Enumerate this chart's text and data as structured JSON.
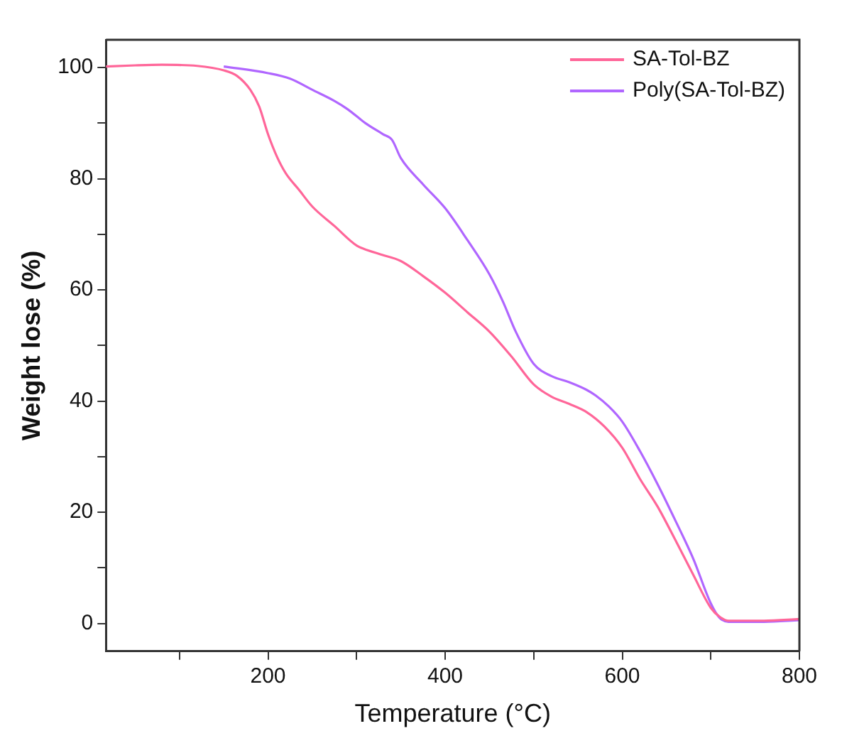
{
  "chart_data": {
    "type": "line",
    "xlabel": "Temperature (°C)",
    "ylabel": "Weight lose (%)",
    "xlim": [
      17,
      800
    ],
    "ylim": [
      -5,
      105
    ],
    "xticks": [
      {
        "value": 100,
        "label": null
      },
      200,
      {
        "value": 300,
        "label": null
      },
      400,
      {
        "value": 500,
        "label": null
      },
      600,
      {
        "value": 700,
        "label": null
      },
      800
    ],
    "yticks": [
      0,
      {
        "value": 10,
        "label": null
      },
      20,
      {
        "value": 30,
        "label": null
      },
      40,
      {
        "value": 50,
        "label": null
      },
      60,
      {
        "value": 70,
        "label": null
      },
      80,
      {
        "value": 90,
        "label": null
      },
      100
    ],
    "grid": false,
    "legend": "top right",
    "marker": "none",
    "line_style": "solid",
    "series": [
      {
        "name": "SA-Tol-BZ",
        "color": "#ff6699",
        "x": [
          17,
          50,
          80,
          120,
          150,
          165,
          180,
          190,
          200,
          210,
          220,
          235,
          250,
          275,
          300,
          325,
          350,
          375,
          400,
          425,
          450,
          475,
          500,
          520,
          540,
          560,
          580,
          600,
          620,
          640,
          660,
          680,
          700,
          710,
          720,
          760,
          800
        ],
        "values": [
          100.2,
          100.4,
          100.5,
          100.3,
          99.5,
          98.5,
          96,
          93,
          88,
          84,
          81,
          78,
          75,
          71.5,
          68,
          66.5,
          65.2,
          62.5,
          59.5,
          56,
          52.5,
          48,
          43,
          40.8,
          39.5,
          38,
          35.4,
          31.6,
          26,
          21,
          15,
          8.8,
          2.8,
          1.2,
          0.5,
          0.5,
          0.8
        ]
      },
      {
        "name": "Poly(SA-Tol-BZ)",
        "color": "#b066ff",
        "x": [
          150,
          200,
          225,
          250,
          275,
          290,
          310,
          330,
          340,
          350,
          375,
          400,
          425,
          450,
          465,
          480,
          500,
          520,
          540,
          560,
          570,
          585,
          600,
          620,
          640,
          660,
          680,
          700,
          710,
          720,
          760,
          800
        ],
        "values": [
          100.2,
          99,
          98,
          96,
          94,
          92.5,
          90,
          88,
          87,
          83.7,
          79,
          74.7,
          69,
          62.8,
          58,
          52.4,
          46.7,
          44.5,
          43.4,
          42,
          41,
          39,
          36.3,
          31,
          25,
          18.5,
          11.7,
          3.6,
          1,
          0.3,
          0.3,
          0.6
        ]
      }
    ]
  }
}
